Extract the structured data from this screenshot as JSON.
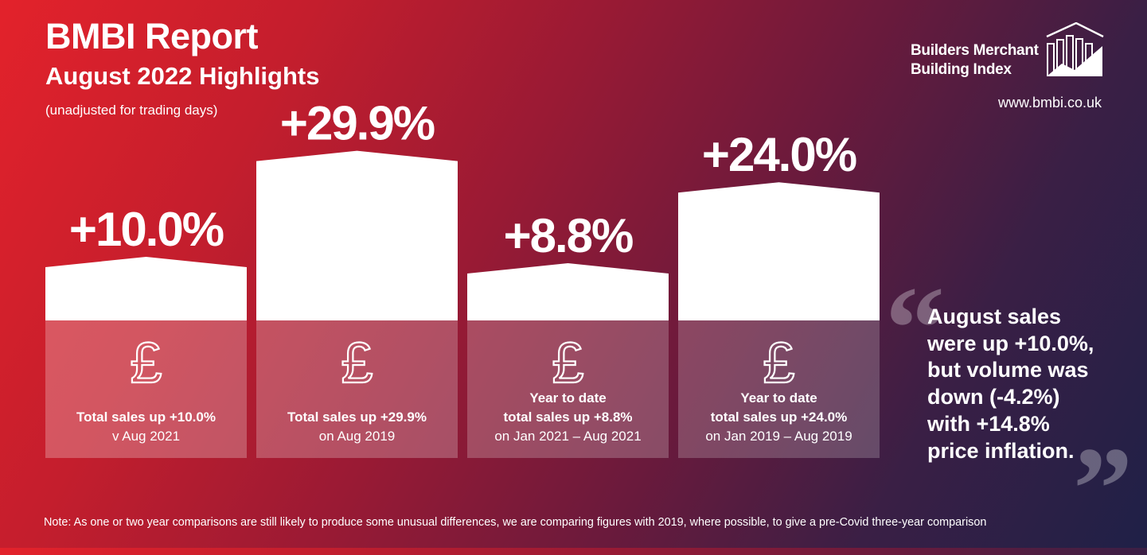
{
  "header": {
    "title": "BMBI Report",
    "subtitle": "August 2022 Highlights",
    "note": "(unadjusted for trading days)"
  },
  "brand": {
    "line1": "Builders Merchant",
    "line2": "Building Index",
    "url": "www.bmbi.co.uk"
  },
  "chart_data": {
    "type": "bar",
    "categories": [
      "Total sales up +10.0% v Aug 2021",
      "Total sales up +29.9% on Aug 2019",
      "Year to date total sales up +8.8% on Jan 2021 – Aug 2021",
      "Year to date total sales up +24.0% on Jan 2019 – Aug 2019"
    ],
    "values": [
      10.0,
      29.9,
      8.8,
      24.0
    ],
    "data_labels": [
      "+10.0%",
      "+29.9%",
      "+8.8%",
      "+24.0%"
    ],
    "captions": [
      {
        "bold": [
          "Total sales up +10.0%"
        ],
        "normal": [
          "v Aug 2021"
        ]
      },
      {
        "bold": [
          "Total sales up +29.9%"
        ],
        "normal": [
          "on Aug 2019"
        ]
      },
      {
        "bold": [
          "Year to date",
          "total sales up +8.8%"
        ],
        "normal": [
          "on Jan 2021 – Aug 2021"
        ]
      },
      {
        "bold": [
          "Year to date",
          "total sales up +24.0%"
        ],
        "normal": [
          "on Jan 2019 – Aug 2019"
        ]
      }
    ],
    "icon_glyph": "£",
    "ylim": [
      0,
      35
    ],
    "bar_color": "#ffffff"
  },
  "quote": {
    "lines": [
      "August sales",
      "were up +10.0%,",
      "but volume was",
      "down (-4.2%)",
      "with +14.8%",
      "price inflation."
    ],
    "open_mark": "“",
    "close_mark": "”"
  },
  "footer": {
    "text": "Note: As one or two year comparisons are still likely to produce some unusual differences, we are comparing figures with 2019, where possible, to give a pre-Covid three-year comparison"
  }
}
